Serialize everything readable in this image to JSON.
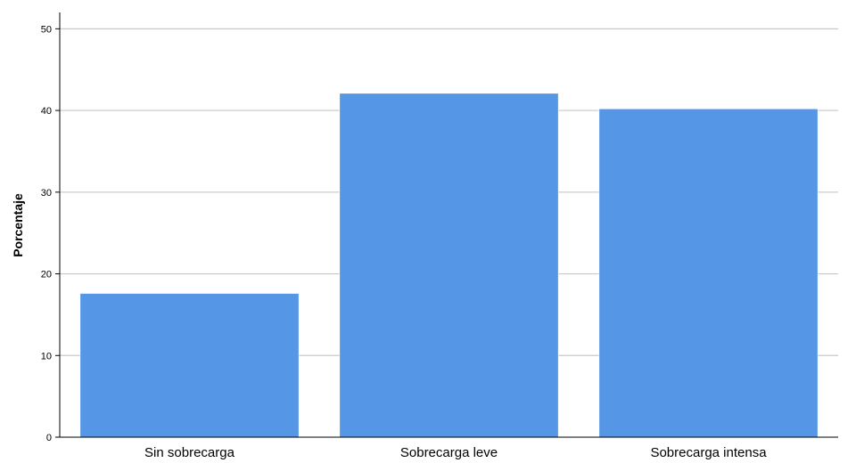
{
  "chart_data": {
    "type": "bar",
    "categories": [
      "Sin sobrecarga",
      "Sobrecarga leve",
      "Sobrecarga intensa"
    ],
    "values": [
      17.6,
      42.1,
      40.2
    ],
    "xlabel": "",
    "ylabel": "Porcentaje",
    "ylim": [
      0,
      52
    ],
    "yticks": [
      0,
      10,
      20,
      30,
      40,
      50
    ],
    "grid": true,
    "bar_color": "#5596e6",
    "grid_color": "#c8c8c8",
    "axis_color": "#000000"
  }
}
